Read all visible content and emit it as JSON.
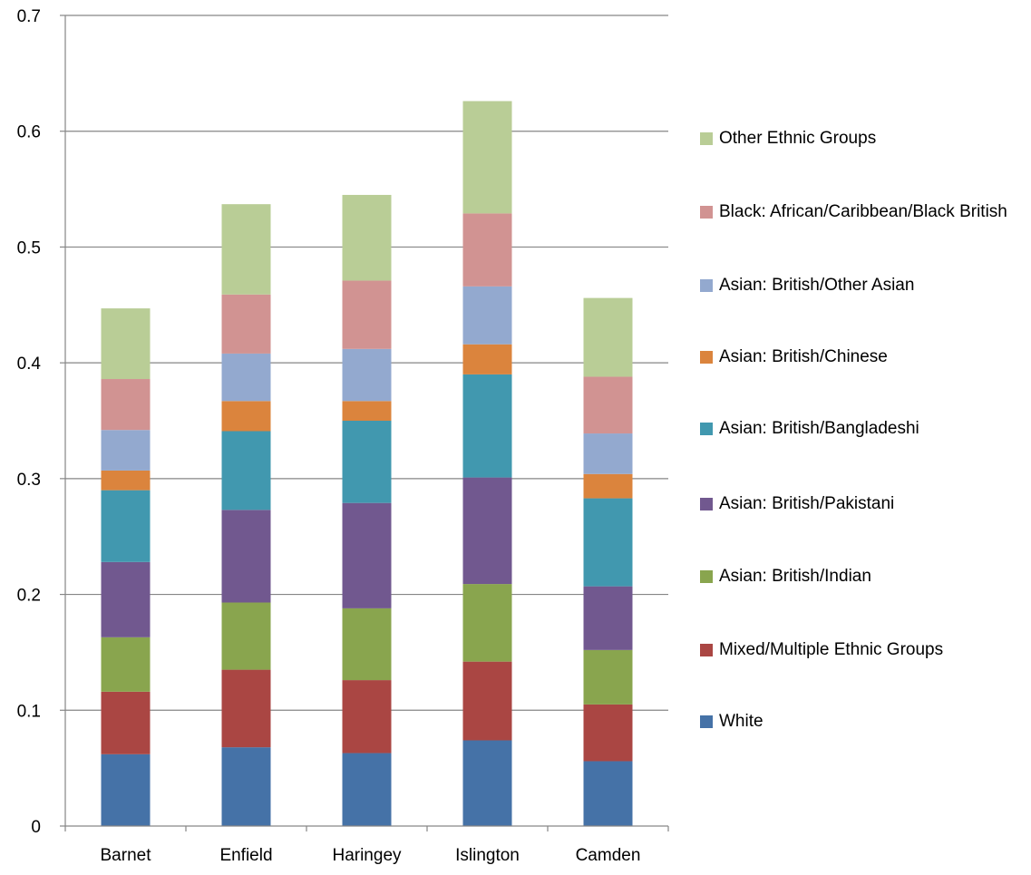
{
  "chart_data": {
    "type": "bar",
    "stacked": true,
    "categories": [
      "Barnet",
      "Enfield",
      "Haringey",
      "Islington",
      "Camden"
    ],
    "ylim": [
      0,
      0.7
    ],
    "yticks": [
      "0",
      "0.1",
      "0.2",
      "0.3",
      "0.4",
      "0.5",
      "0.6",
      "0.7"
    ],
    "grid": true,
    "legend_position": "right",
    "series": [
      {
        "name": "White",
        "color": "#4572a7",
        "values": [
          0.062,
          0.068,
          0.063,
          0.074,
          0.056
        ]
      },
      {
        "name": "Mixed/Multiple Ethnic Groups",
        "color": "#aa4643",
        "values": [
          0.054,
          0.067,
          0.063,
          0.068,
          0.049
        ]
      },
      {
        "name": "Asian: British/Indian",
        "color": "#89a54e",
        "values": [
          0.047,
          0.058,
          0.062,
          0.067,
          0.047
        ]
      },
      {
        "name": "Asian: British/Pakistani",
        "color": "#71588f",
        "values": [
          0.065,
          0.08,
          0.091,
          0.092,
          0.055
        ]
      },
      {
        "name": "Asian: British/Bangladeshi",
        "color": "#4198af",
        "values": [
          0.062,
          0.068,
          0.071,
          0.089,
          0.076
        ]
      },
      {
        "name": "Asian: British/Chinese",
        "color": "#db843d",
        "values": [
          0.017,
          0.026,
          0.017,
          0.026,
          0.021
        ]
      },
      {
        "name": "Asian: British/Other Asian",
        "color": "#93a9cf",
        "values": [
          0.035,
          0.041,
          0.045,
          0.05,
          0.035
        ]
      },
      {
        "name": "Black: African/Caribbean/Black British",
        "color": "#d19392",
        "values": [
          0.044,
          0.051,
          0.059,
          0.063,
          0.049
        ]
      },
      {
        "name": "Other Ethnic Groups",
        "color": "#b9cd96",
        "values": [
          0.061,
          0.078,
          0.074,
          0.097,
          0.068
        ]
      }
    ]
  }
}
